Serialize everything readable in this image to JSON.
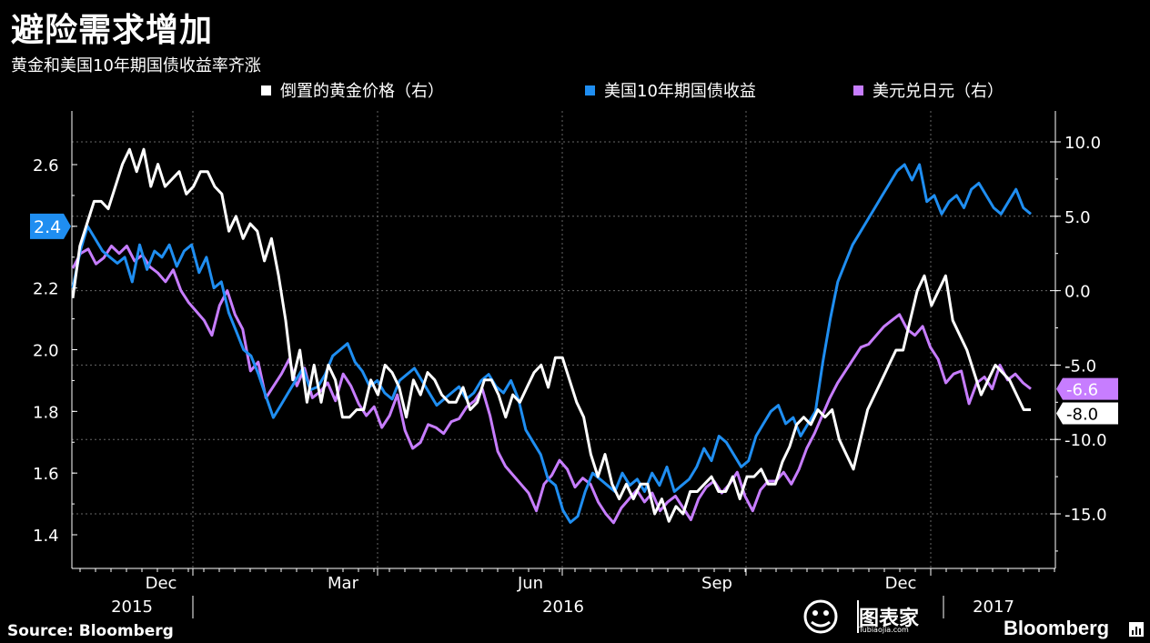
{
  "header": {
    "title": "避险需求增加",
    "subtitle": "黄金和美国10年期国债收益率齐涨"
  },
  "footer": {
    "source": "Source: Bloomberg",
    "brand": "Bloomberg",
    "watermark": "图表家",
    "watermark_sub": "Tubiaojia.com"
  },
  "colors": {
    "gold": "#ffffff",
    "yield": "#1f8ef1",
    "usdjpy": "#c77dff",
    "background": "#000000",
    "grid": "#666666"
  },
  "chart_data": {
    "type": "line",
    "title": "",
    "ylabel_left": "（%）",
    "ylim_left": [
      1.35,
      2.75
    ],
    "ylim_right": [
      -19,
      11
    ],
    "yticks_left": [
      "2.6",
      "2.4",
      "2.2",
      "2.0",
      "1.8",
      "1.6",
      "1.4"
    ],
    "yticks_right": [
      "10.0",
      "5.0",
      "0.0",
      "-5.0",
      "-10.0",
      "-15.0"
    ],
    "xticks_month": [
      "Dec",
      "Mar",
      "Jun",
      "Sep",
      "Dec"
    ],
    "xticks_year": [
      "2015",
      "2016",
      "2017"
    ],
    "legend_position": "top",
    "grid": true,
    "series": [
      {
        "name": "倒置的黄金价格（右）",
        "axis": "right",
        "last_label": "-8.0",
        "values": [
          -0.5,
          3,
          4.5,
          6,
          6,
          5.5,
          7,
          8.5,
          9.5,
          8,
          9.5,
          7,
          8.5,
          7,
          7.5,
          8,
          6.5,
          7,
          8,
          8,
          7,
          6.5,
          4,
          5,
          3.5,
          4.5,
          4,
          2,
          3.5,
          1,
          -2,
          -6,
          -4,
          -7.5,
          -5,
          -7.5,
          -5,
          -6,
          -8.5,
          -8.5,
          -8,
          -8,
          -6,
          -7,
          -5,
          -5.5,
          -6.5,
          -8.5,
          -6,
          -7,
          -5.5,
          -6,
          -7,
          -7.5,
          -7.5,
          -6.5,
          -8,
          -7.5,
          -6,
          -6,
          -7,
          -8.5,
          -7,
          -7.5,
          -6.5,
          -5.5,
          -5,
          -6.5,
          -4.5,
          -4.5,
          -6,
          -7.5,
          -8.5,
          -11,
          -12.5,
          -11,
          -13,
          -14,
          -13,
          -14,
          -13,
          -13,
          -15,
          -14,
          -15.5,
          -14.5,
          -15,
          -13.5,
          -13.5,
          -13,
          -12.5,
          -13.5,
          -13.5,
          -12.5,
          -14,
          -12.5,
          -12.5,
          -12,
          -13,
          -13,
          -11.5,
          -10.5,
          -9,
          -8.5,
          -9,
          -8,
          -8.5,
          -8,
          -10,
          -11,
          -12,
          -10,
          -8,
          -7,
          -6,
          -5,
          -4,
          -4,
          -2,
          0,
          1,
          -1,
          0,
          1,
          -2,
          -3,
          -4,
          -5.5,
          -7,
          -6,
          -5,
          -5.5,
          -6,
          -7,
          -8,
          -8
        ]
      },
      {
        "name": "美国10年期国债收益",
        "axis": "left",
        "last_label": "2.4",
        "values": [
          2.2,
          2.32,
          2.4,
          2.36,
          2.32,
          2.3,
          2.28,
          2.3,
          2.22,
          2.34,
          2.26,
          2.32,
          2.3,
          2.34,
          2.27,
          2.32,
          2.34,
          2.25,
          2.3,
          2.2,
          2.22,
          2.12,
          2.06,
          2.0,
          1.98,
          1.92,
          1.85,
          1.78,
          1.82,
          1.86,
          1.9,
          1.94,
          1.87,
          1.88,
          1.92,
          1.98,
          2.0,
          2.02,
          1.96,
          1.93,
          1.88,
          1.9,
          1.86,
          1.84,
          1.9,
          1.92,
          1.94,
          1.9,
          1.86,
          1.82,
          1.84,
          1.86,
          1.88,
          1.84,
          1.86,
          1.9,
          1.92,
          1.88,
          1.86,
          1.9,
          1.84,
          1.74,
          1.7,
          1.66,
          1.58,
          1.56,
          1.48,
          1.44,
          1.46,
          1.54,
          1.6,
          1.58,
          1.56,
          1.54,
          1.6,
          1.56,
          1.58,
          1.54,
          1.6,
          1.56,
          1.62,
          1.54,
          1.56,
          1.58,
          1.62,
          1.68,
          1.64,
          1.72,
          1.7,
          1.66,
          1.62,
          1.64,
          1.72,
          1.76,
          1.8,
          1.82,
          1.76,
          1.78,
          1.72,
          1.76,
          1.8,
          1.96,
          2.1,
          2.22,
          2.28,
          2.34,
          2.38,
          2.42,
          2.46,
          2.5,
          2.54,
          2.58,
          2.6,
          2.55,
          2.6,
          2.48,
          2.5,
          2.44,
          2.48,
          2.5,
          2.46,
          2.52,
          2.54,
          2.5,
          2.46,
          2.44,
          2.48,
          2.52,
          2.46,
          2.44
        ]
      },
      {
        "name": "美元兑日元（右）",
        "axis": "right",
        "last_label": "-6.6",
        "values": [
          1.5,
          2.5,
          2.8,
          1.8,
          2.2,
          3.0,
          2.5,
          3.0,
          2.0,
          2.4,
          1.6,
          1.2,
          0.6,
          1.4,
          0.0,
          -0.8,
          -1.4,
          -2.0,
          -3.0,
          -1.0,
          0.0,
          -1.6,
          -2.6,
          -5.4,
          -4.8,
          -7.2,
          -6.4,
          -5.6,
          -4.6,
          -6.4,
          -5.2,
          -7.2,
          -6.8,
          -6.2,
          -7.4,
          -5.6,
          -6.4,
          -7.6,
          -8.4,
          -7.8,
          -9.2,
          -8.4,
          -7.0,
          -9.4,
          -10.6,
          -10.2,
          -9.0,
          -9.2,
          -9.6,
          -8.8,
          -8.6,
          -7.8,
          -7.4,
          -6.6,
          -8.4,
          -10.8,
          -11.8,
          -12.4,
          -13.0,
          -13.6,
          -14.8,
          -13.0,
          -12.4,
          -11.4,
          -12.0,
          -13.2,
          -12.6,
          -13.0,
          -14.2,
          -15.0,
          -15.6,
          -14.6,
          -14.0,
          -13.4,
          -14.2,
          -13.6,
          -14.8,
          -14.2,
          -13.8,
          -14.6,
          -15.4,
          -14.0,
          -13.2,
          -12.8,
          -13.6,
          -13.0,
          -12.2,
          -13.8,
          -14.8,
          -13.4,
          -12.8,
          -12.8,
          -12.2,
          -13.0,
          -12.0,
          -10.6,
          -9.6,
          -8.4,
          -7.2,
          -6.2,
          -5.4,
          -4.6,
          -3.8,
          -3.6,
          -3.0,
          -2.4,
          -2.0,
          -1.6,
          -2.6,
          -3.0,
          -2.4,
          -3.8,
          -4.6,
          -6.2,
          -5.6,
          -5.4,
          -7.6,
          -6.2,
          -5.8,
          -6.6,
          -5.0,
          -6.0,
          -5.6,
          -6.2,
          -6.6
        ]
      }
    ]
  }
}
